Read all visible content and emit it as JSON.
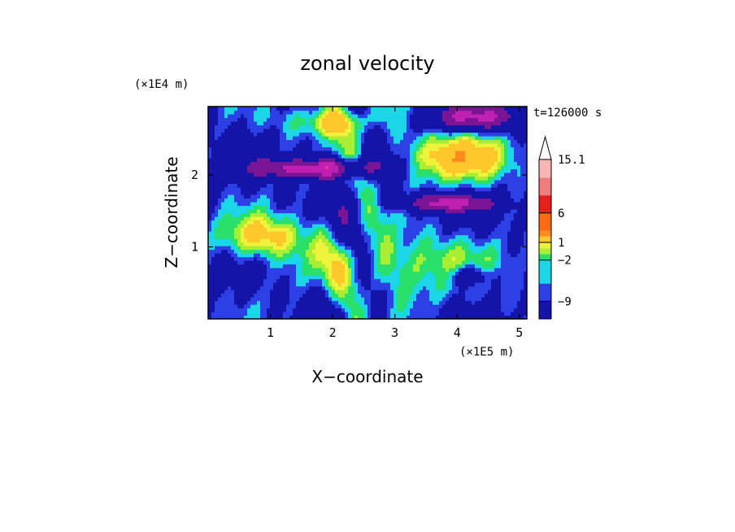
{
  "chart_data": {
    "type": "heatmap",
    "title": "zonal velocity",
    "xlabel": "X−coordinate",
    "ylabel": "Z−coordinate",
    "x_scale_label": "(×1E5 m)",
    "y_scale_label": "(×1E4 m)",
    "time_label": "t=126000 s",
    "xlim": [
      0,
      5.12
    ],
    "ylim": [
      0,
      2.95
    ],
    "x_ticks": [
      "1",
      "2",
      "3",
      "4",
      "5"
    ],
    "x_tick_values": [
      1,
      2,
      3,
      4,
      5
    ],
    "y_ticks": [
      "1",
      "2"
    ],
    "y_tick_values": [
      1,
      2
    ],
    "colorbar": {
      "levels": [
        -12,
        -9,
        -6,
        -2,
        -1,
        0,
        1,
        2,
        3,
        6,
        9,
        12,
        15.1
      ],
      "tick_labels": [
        "15.1",
        "6",
        "1",
        "−2",
        "−9"
      ],
      "tick_values": [
        15.1,
        6,
        1,
        -2,
        -9
      ],
      "colors": [
        "#ee2aa6",
        "#c020b0",
        "#7a1595",
        "#1414a8",
        "#2c40e6",
        "#1ad6e6",
        "#29e06a",
        "#a8ef33",
        "#eef23a",
        "#ffc82a",
        "#ff8c1c",
        "#ff6a14",
        "#e6201a",
        "#f07d7d",
        "#f7b6b6"
      ],
      "extend": "max"
    }
  }
}
